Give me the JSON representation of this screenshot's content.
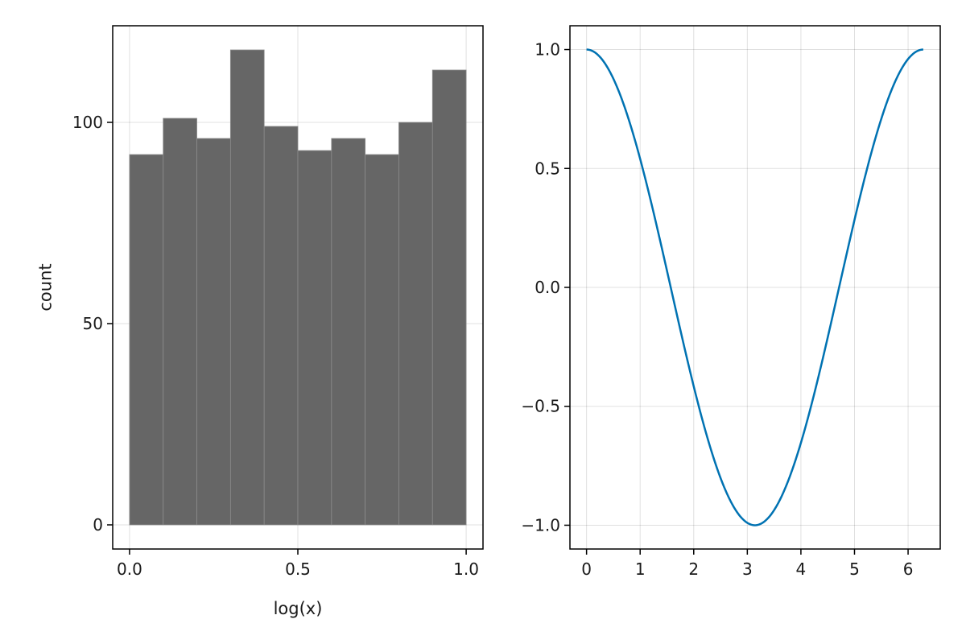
{
  "chart_data": [
    {
      "type": "bar",
      "subtype": "histogram",
      "title": "",
      "xlabel": "log(x)",
      "ylabel": "count",
      "bin_edges": [
        0.0,
        0.1,
        0.2,
        0.3,
        0.4,
        0.5,
        0.6,
        0.7,
        0.8,
        0.9,
        1.0
      ],
      "values": [
        92,
        101,
        96,
        118,
        99,
        93,
        96,
        92,
        100,
        113
      ],
      "xlim": [
        -0.05,
        1.05
      ],
      "ylim": [
        -6,
        124
      ],
      "xticks": [
        0.0,
        0.5,
        1.0
      ],
      "xtick_labels": [
        "0.0",
        "0.5",
        "1.0"
      ],
      "yticks": [
        0,
        50,
        100
      ],
      "ytick_labels": [
        "0",
        "50",
        "100"
      ],
      "grid": true,
      "bar_color": "#666666",
      "bar_edge_color": "#8c8c8c"
    },
    {
      "type": "line",
      "title": "",
      "xlabel": "",
      "ylabel": "",
      "function": "cos(x)",
      "x_range": [
        0,
        6.2832
      ],
      "xlim": [
        -0.31,
        6.6
      ],
      "ylim": [
        -1.1,
        1.1
      ],
      "xticks": [
        0,
        1,
        2,
        3,
        4,
        5,
        6
      ],
      "xtick_labels": [
        "0",
        "1",
        "2",
        "3",
        "4",
        "5",
        "6"
      ],
      "yticks": [
        -1.0,
        -0.5,
        0.0,
        0.5,
        1.0
      ],
      "ytick_labels": [
        "−1.0",
        "−0.5",
        "0.0",
        "0.5",
        "1.0"
      ],
      "grid": true,
      "series": [
        {
          "color": "#0072b2",
          "x": [
            0.0,
            0.2,
            0.4,
            0.6,
            0.8,
            1.0,
            1.2,
            1.4,
            1.6,
            1.8,
            2.0,
            2.2,
            2.4,
            2.6,
            2.8,
            3.0,
            3.1416,
            3.2,
            3.4,
            3.6,
            3.8,
            4.0,
            4.2,
            4.4,
            4.6,
            4.8,
            5.0,
            5.2,
            5.4,
            5.6,
            5.8,
            6.0,
            6.2832
          ],
          "y": [
            1.0,
            0.98,
            0.921,
            0.825,
            0.697,
            0.54,
            0.362,
            0.17,
            -0.029,
            -0.227,
            -0.416,
            -0.589,
            -0.737,
            -0.857,
            -0.942,
            -0.99,
            -1.0,
            -0.998,
            -0.967,
            -0.897,
            -0.791,
            -0.654,
            -0.49,
            -0.307,
            -0.112,
            0.087,
            0.284,
            0.469,
            0.635,
            0.776,
            0.886,
            0.96,
            1.0
          ]
        }
      ]
    }
  ]
}
